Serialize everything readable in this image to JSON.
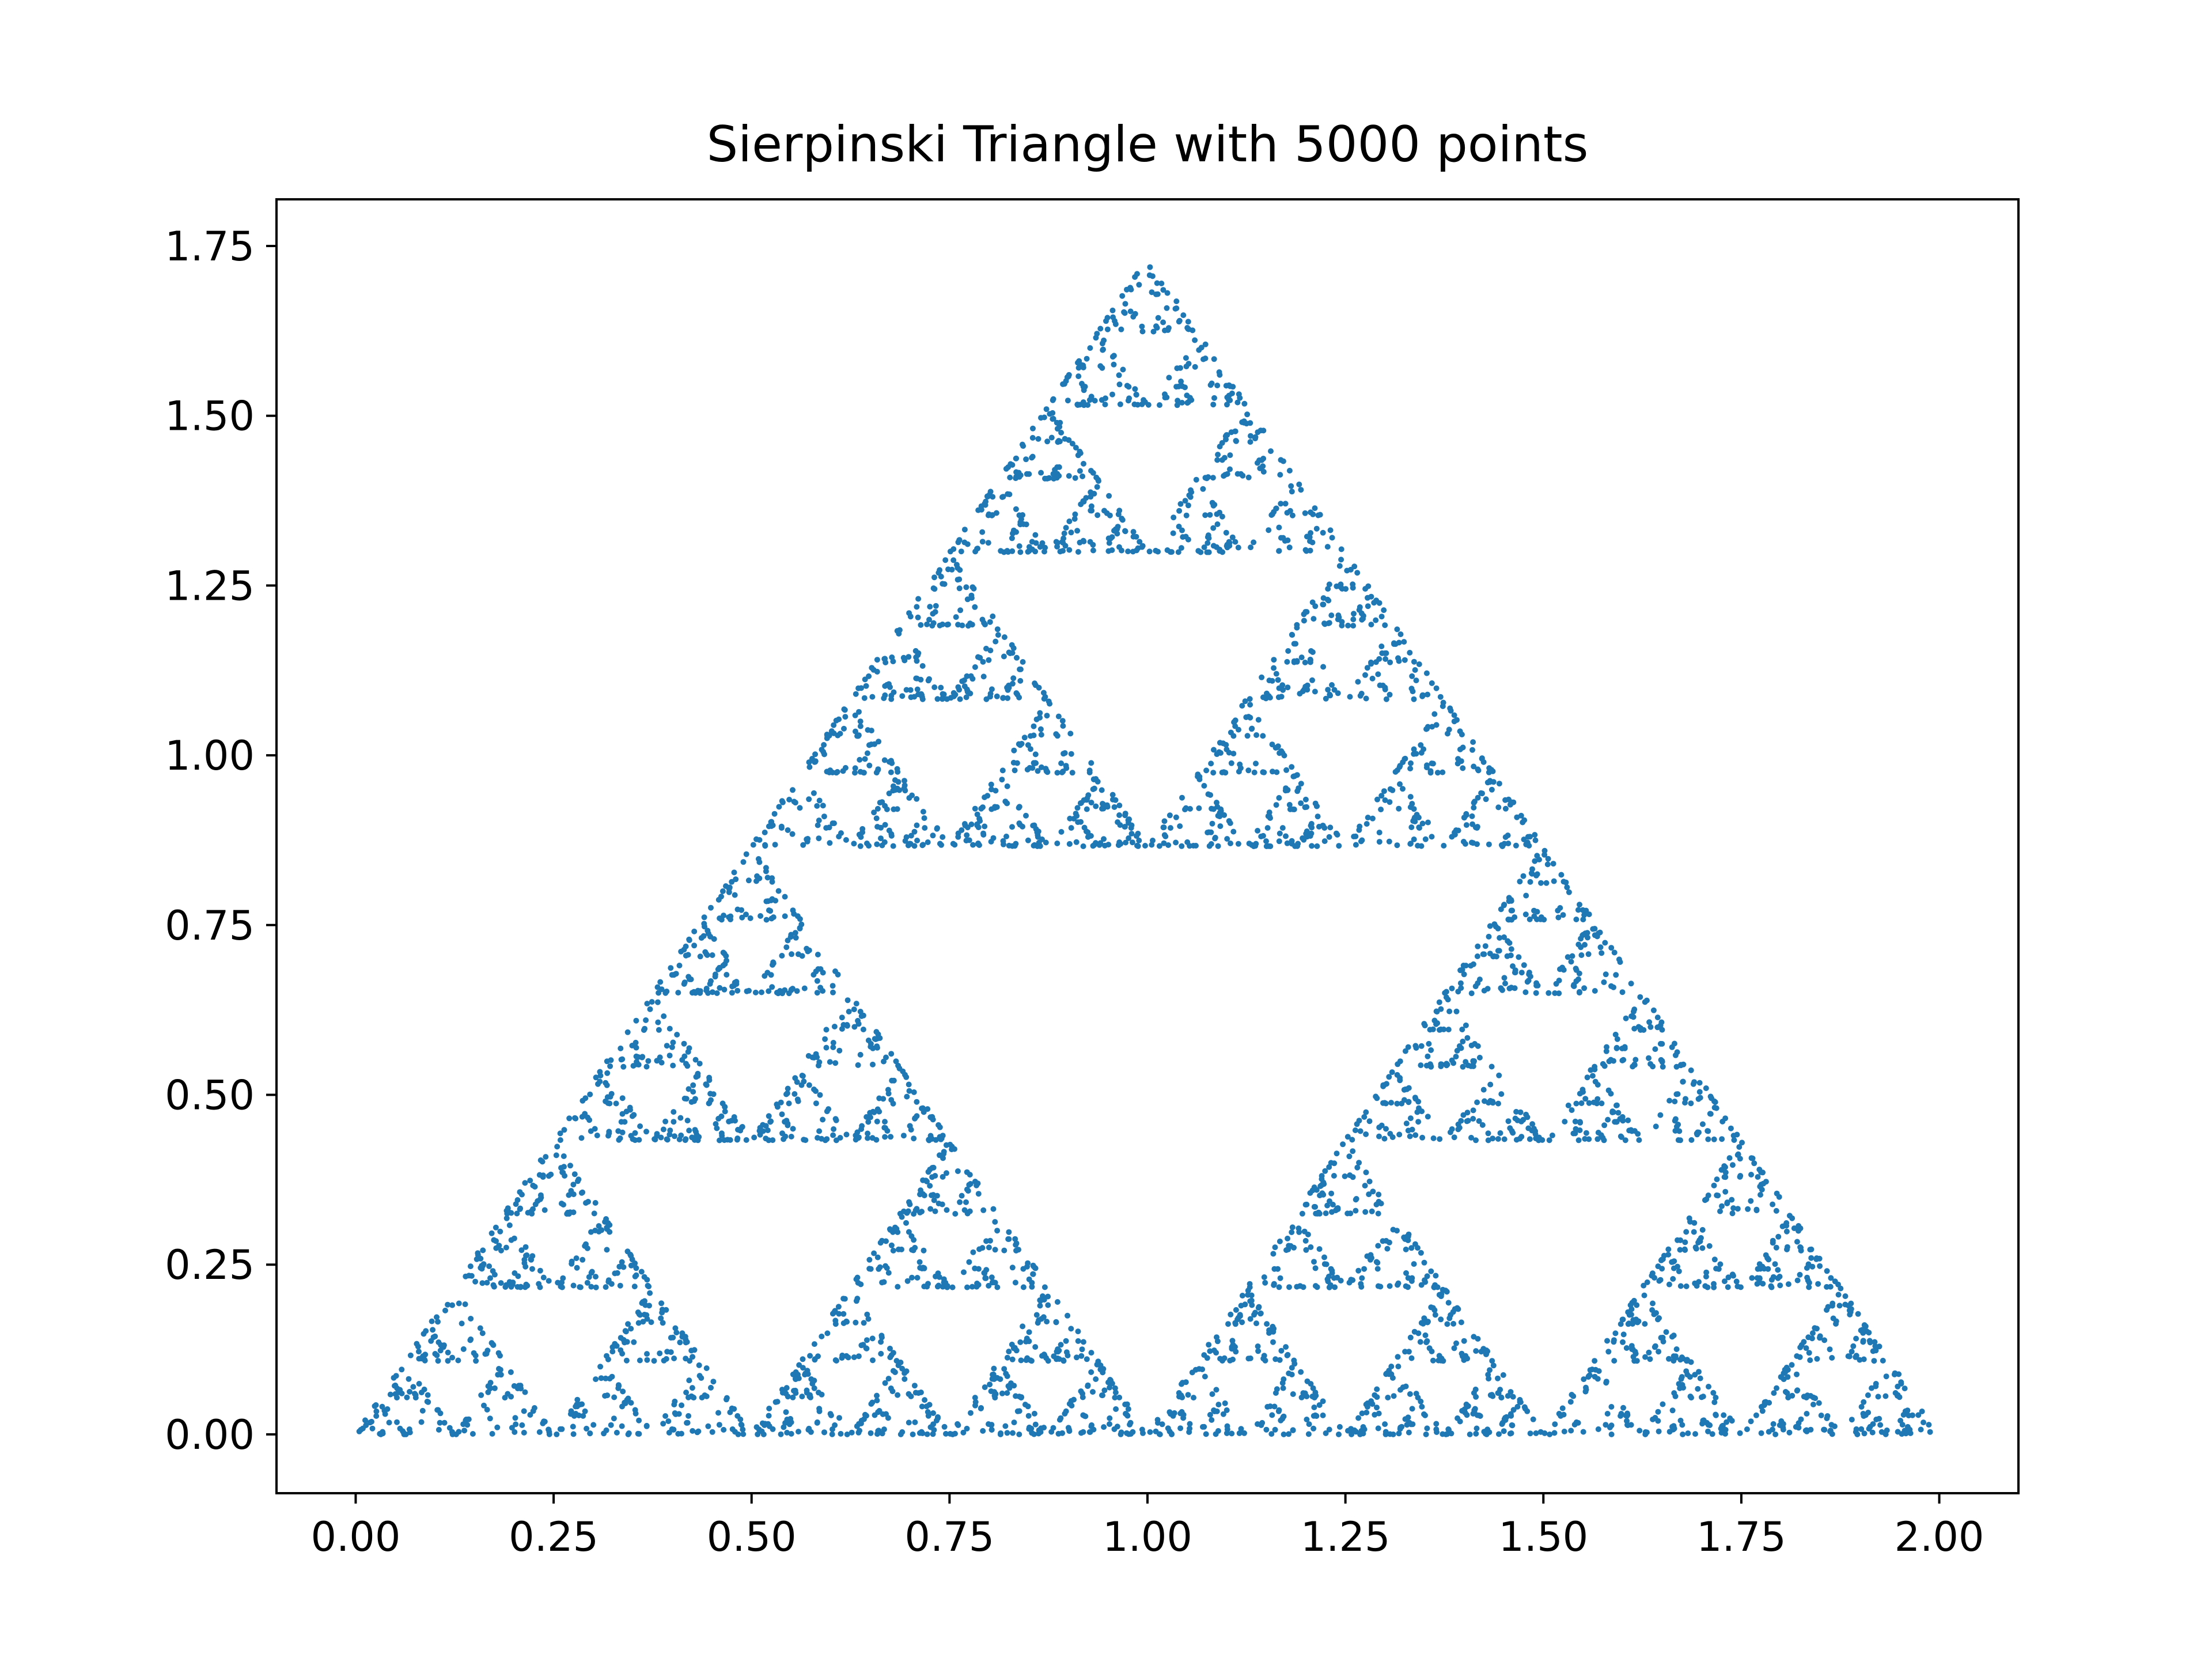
{
  "chart_data": {
    "type": "scatter",
    "title": "Sierpinski Triangle with 5000 points",
    "xlabel": "",
    "ylabel": "",
    "xlim": [
      -0.1,
      2.1
    ],
    "ylim": [
      -0.0866,
      1.8187
    ],
    "xticks": [
      0.0,
      0.25,
      0.5,
      0.75,
      1.0,
      1.25,
      1.5,
      1.75,
      2.0
    ],
    "xtick_labels": [
      "0.00",
      "0.25",
      "0.50",
      "0.75",
      "1.00",
      "1.25",
      "1.50",
      "1.75",
      "2.00"
    ],
    "yticks": [
      0.0,
      0.25,
      0.5,
      0.75,
      1.0,
      1.25,
      1.5,
      1.75
    ],
    "ytick_labels": [
      "0.00",
      "0.25",
      "0.50",
      "0.75",
      "1.00",
      "1.25",
      "1.50",
      "1.75"
    ],
    "grid": false,
    "legend": "none",
    "n_points": 5000,
    "vertices": [
      [
        0,
        0
      ],
      [
        2,
        0
      ],
      [
        1,
        1.7320508
      ]
    ],
    "rule": "chaos game: move halfway toward a randomly chosen vertex",
    "color": "#1f77b4"
  }
}
